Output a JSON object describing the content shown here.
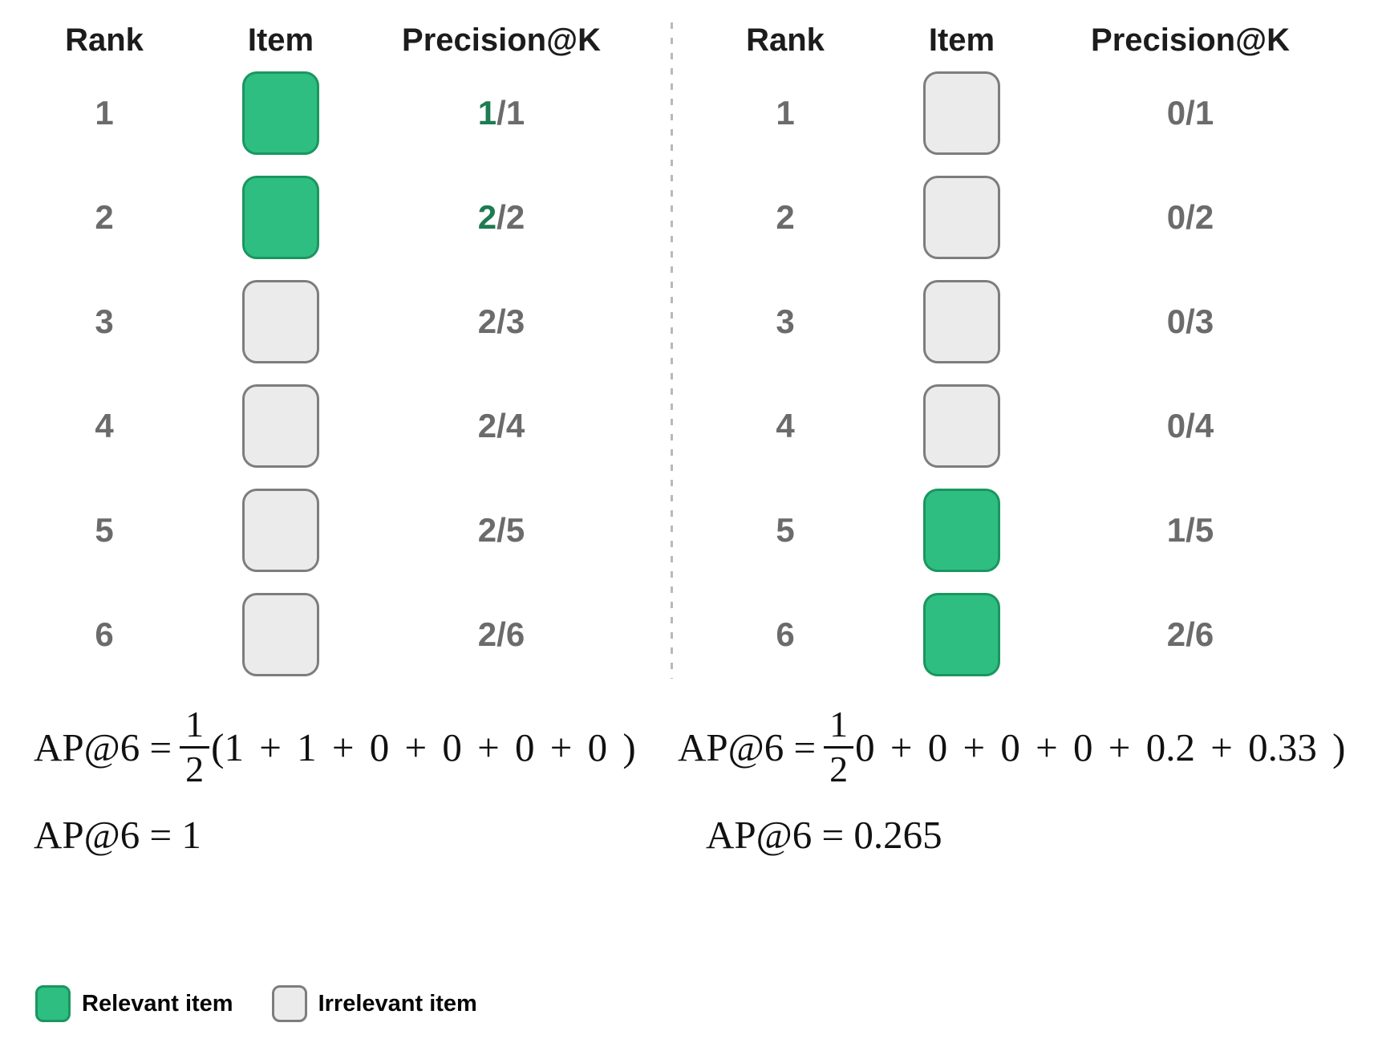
{
  "colors": {
    "relevant_fill": "#2fbe82",
    "relevant_border": "#1a965f",
    "irrelevant_fill": "#ebebeb",
    "irrelevant_border": "#7d7d7d",
    "green_numerator_text": "#1e7b52",
    "gray_text": "#6b6b6b",
    "header_text": "#1c1c1c",
    "divider": "#b9b9b9"
  },
  "left": {
    "headers": {
      "rank": "Rank",
      "item": "Item",
      "precision": "Precision@K"
    },
    "rows": [
      {
        "rank": "1",
        "state": "relevant",
        "p_num": "1",
        "p_rest": "/1",
        "num_color": "green"
      },
      {
        "rank": "2",
        "state": "relevant",
        "p_num": "2",
        "p_rest": "/2",
        "num_color": "green"
      },
      {
        "rank": "3",
        "state": "irrelevant",
        "p_num": "2",
        "p_rest": "/3",
        "num_color": "gray"
      },
      {
        "rank": "4",
        "state": "irrelevant",
        "p_num": "2",
        "p_rest": "/4",
        "num_color": "gray"
      },
      {
        "rank": "5",
        "state": "irrelevant",
        "p_num": "2",
        "p_rest": "/5",
        "num_color": "gray"
      },
      {
        "rank": "6",
        "state": "irrelevant",
        "p_num": "2",
        "p_rest": "/6",
        "num_color": "gray"
      }
    ],
    "formula": {
      "lhs": "AP@6 =",
      "frac_num": "1",
      "frac_den": "2",
      "tail": "(1 + 1 + 0 + 0 + 0 + 0 )"
    },
    "result": "AP@6 = 1"
  },
  "right": {
    "headers": {
      "rank": "Rank",
      "item": "Item",
      "precision": "Precision@K"
    },
    "rows": [
      {
        "rank": "1",
        "state": "irrelevant",
        "p_num": "0",
        "p_rest": "/1",
        "num_color": "gray"
      },
      {
        "rank": "2",
        "state": "irrelevant",
        "p_num": "0",
        "p_rest": "/2",
        "num_color": "gray"
      },
      {
        "rank": "3",
        "state": "irrelevant",
        "p_num": "0",
        "p_rest": "/3",
        "num_color": "gray"
      },
      {
        "rank": "4",
        "state": "irrelevant",
        "p_num": "0",
        "p_rest": "/4",
        "num_color": "gray"
      },
      {
        "rank": "5",
        "state": "relevant",
        "p_num": "1",
        "p_rest": "/5",
        "num_color": "gray"
      },
      {
        "rank": "6",
        "state": "relevant",
        "p_num": "2",
        "p_rest": "/6",
        "num_color": "gray"
      }
    ],
    "formula": {
      "lhs": "AP@6 =",
      "frac_num": "1",
      "frac_den": "2",
      "tail": "0 + 0 + 0 + 0 + 0.2 + 0.33 )"
    },
    "result": "AP@6 = 0.265"
  },
  "legend": [
    {
      "state": "relevant",
      "label": "Relevant item"
    },
    {
      "state": "irrelevant",
      "label": "Irrelevant item"
    }
  ]
}
